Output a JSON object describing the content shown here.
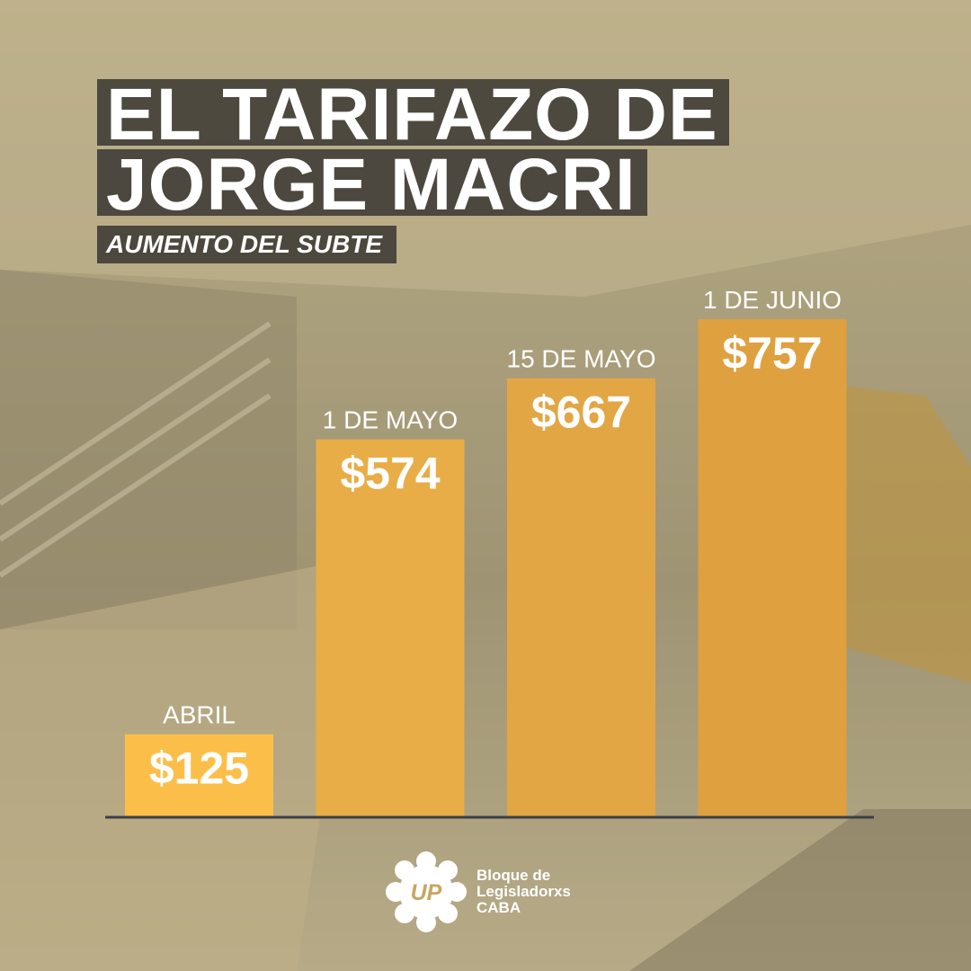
{
  "title_line1": "EL TARIFAZO DE",
  "title_line2": "JORGE MACRI",
  "subtitle": "AUMENTO DEL SUBTE",
  "chart_data": {
    "type": "bar",
    "categories": [
      "ABRIL",
      "1 DE MAYO",
      "15 DE MAYO",
      "1 DE JUNIO"
    ],
    "values": [
      125,
      574,
      667,
      757
    ],
    "value_labels": [
      "$125",
      "$574",
      "$667",
      "$757"
    ],
    "ylim": [
      0,
      757
    ],
    "bar_colors": [
      "#fbbf49",
      "#e8ad47",
      "#e3a644",
      "#dfa03f"
    ],
    "axis_color": "#3a3f48"
  },
  "logo": {
    "mark_text": "UP",
    "line1": "Bloque de",
    "line2": "Legisladorxs",
    "line3": "CABA"
  }
}
